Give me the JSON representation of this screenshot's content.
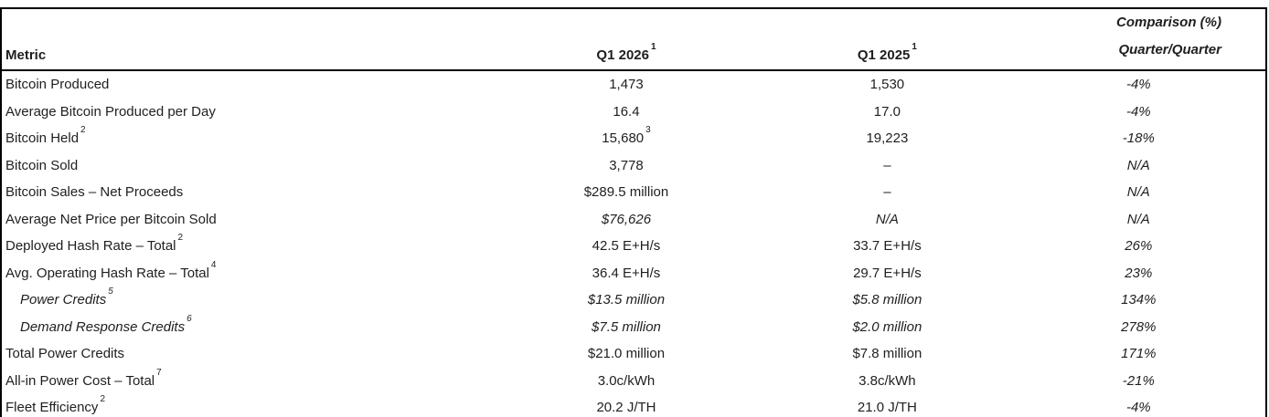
{
  "colors": {
    "border": "#000000",
    "text": "#1f1f1f",
    "background": "#ffffff"
  },
  "table": {
    "header": {
      "metric": "Metric",
      "q1_2026": {
        "label": "Q1 2026",
        "sup": "1"
      },
      "q1_2025": {
        "label": "Q1 2025",
        "sup": "1"
      },
      "comparison": {
        "line1": "Comparison (%)",
        "line2": "Quarter/Quarter"
      }
    },
    "rows": [
      {
        "metric": "Bitcoin Produced",
        "q1_2026": "1,473",
        "q1_2025": "1,530",
        "comparison": "-4%"
      },
      {
        "metric": "Average Bitcoin Produced per Day",
        "q1_2026": "16.4",
        "q1_2025": "17.0",
        "comparison": "-4%"
      },
      {
        "metric": "Bitcoin Held",
        "metric_sup": "2",
        "q1_2026": "15,680",
        "q1_2026_sup": "3",
        "q1_2025": "19,223",
        "comparison": "-18%"
      },
      {
        "metric": "Bitcoin Sold",
        "q1_2026": "3,778",
        "q1_2025": "–",
        "comparison": "N/A"
      },
      {
        "metric": "Bitcoin Sales – Net Proceeds",
        "q1_2026": "$289.5 million",
        "q1_2025": "–",
        "comparison": "N/A"
      },
      {
        "metric": "Average Net Price per Bitcoin Sold",
        "q1_2026": "$76,626",
        "italic_2026": true,
        "q1_2025": "N/A",
        "italic_2025": true,
        "comparison": "N/A"
      },
      {
        "metric": "Deployed Hash Rate – Total",
        "metric_sup": "2",
        "q1_2026": "42.5 E+H/s",
        "q1_2025": "33.7 E+H/s",
        "comparison": "26%"
      },
      {
        "metric": "Avg. Operating Hash Rate – Total",
        "metric_sup": "4",
        "q1_2026": "36.4 E+H/s",
        "q1_2025": "29.7 E+H/s",
        "comparison": "23%"
      },
      {
        "metric": "Power Credits",
        "metric_sup": "5",
        "indent": true,
        "italic_metric": true,
        "q1_2026": "$13.5 million",
        "italic_2026": true,
        "q1_2025": "$5.8 million",
        "italic_2025": true,
        "comparison": "134%"
      },
      {
        "metric": "Demand Response Credits",
        "metric_sup": "6",
        "indent": true,
        "italic_metric": true,
        "q1_2026": "$7.5 million",
        "italic_2026": true,
        "q1_2025": "$2.0 million",
        "italic_2025": true,
        "comparison": "278%"
      },
      {
        "metric": "Total Power Credits",
        "q1_2026": "$21.0 million",
        "q1_2025": "$7.8 million",
        "comparison": "171%"
      },
      {
        "metric": "All-in Power Cost – Total",
        "metric_sup": "7",
        "q1_2026": "3.0c/kWh",
        "q1_2025": "3.8c/kWh",
        "comparison": "-21%"
      },
      {
        "metric": "Fleet Efficiency",
        "metric_sup": "2",
        "q1_2026": "20.2 J/TH",
        "q1_2025": "21.0 J/TH",
        "comparison": "-4%"
      }
    ]
  }
}
